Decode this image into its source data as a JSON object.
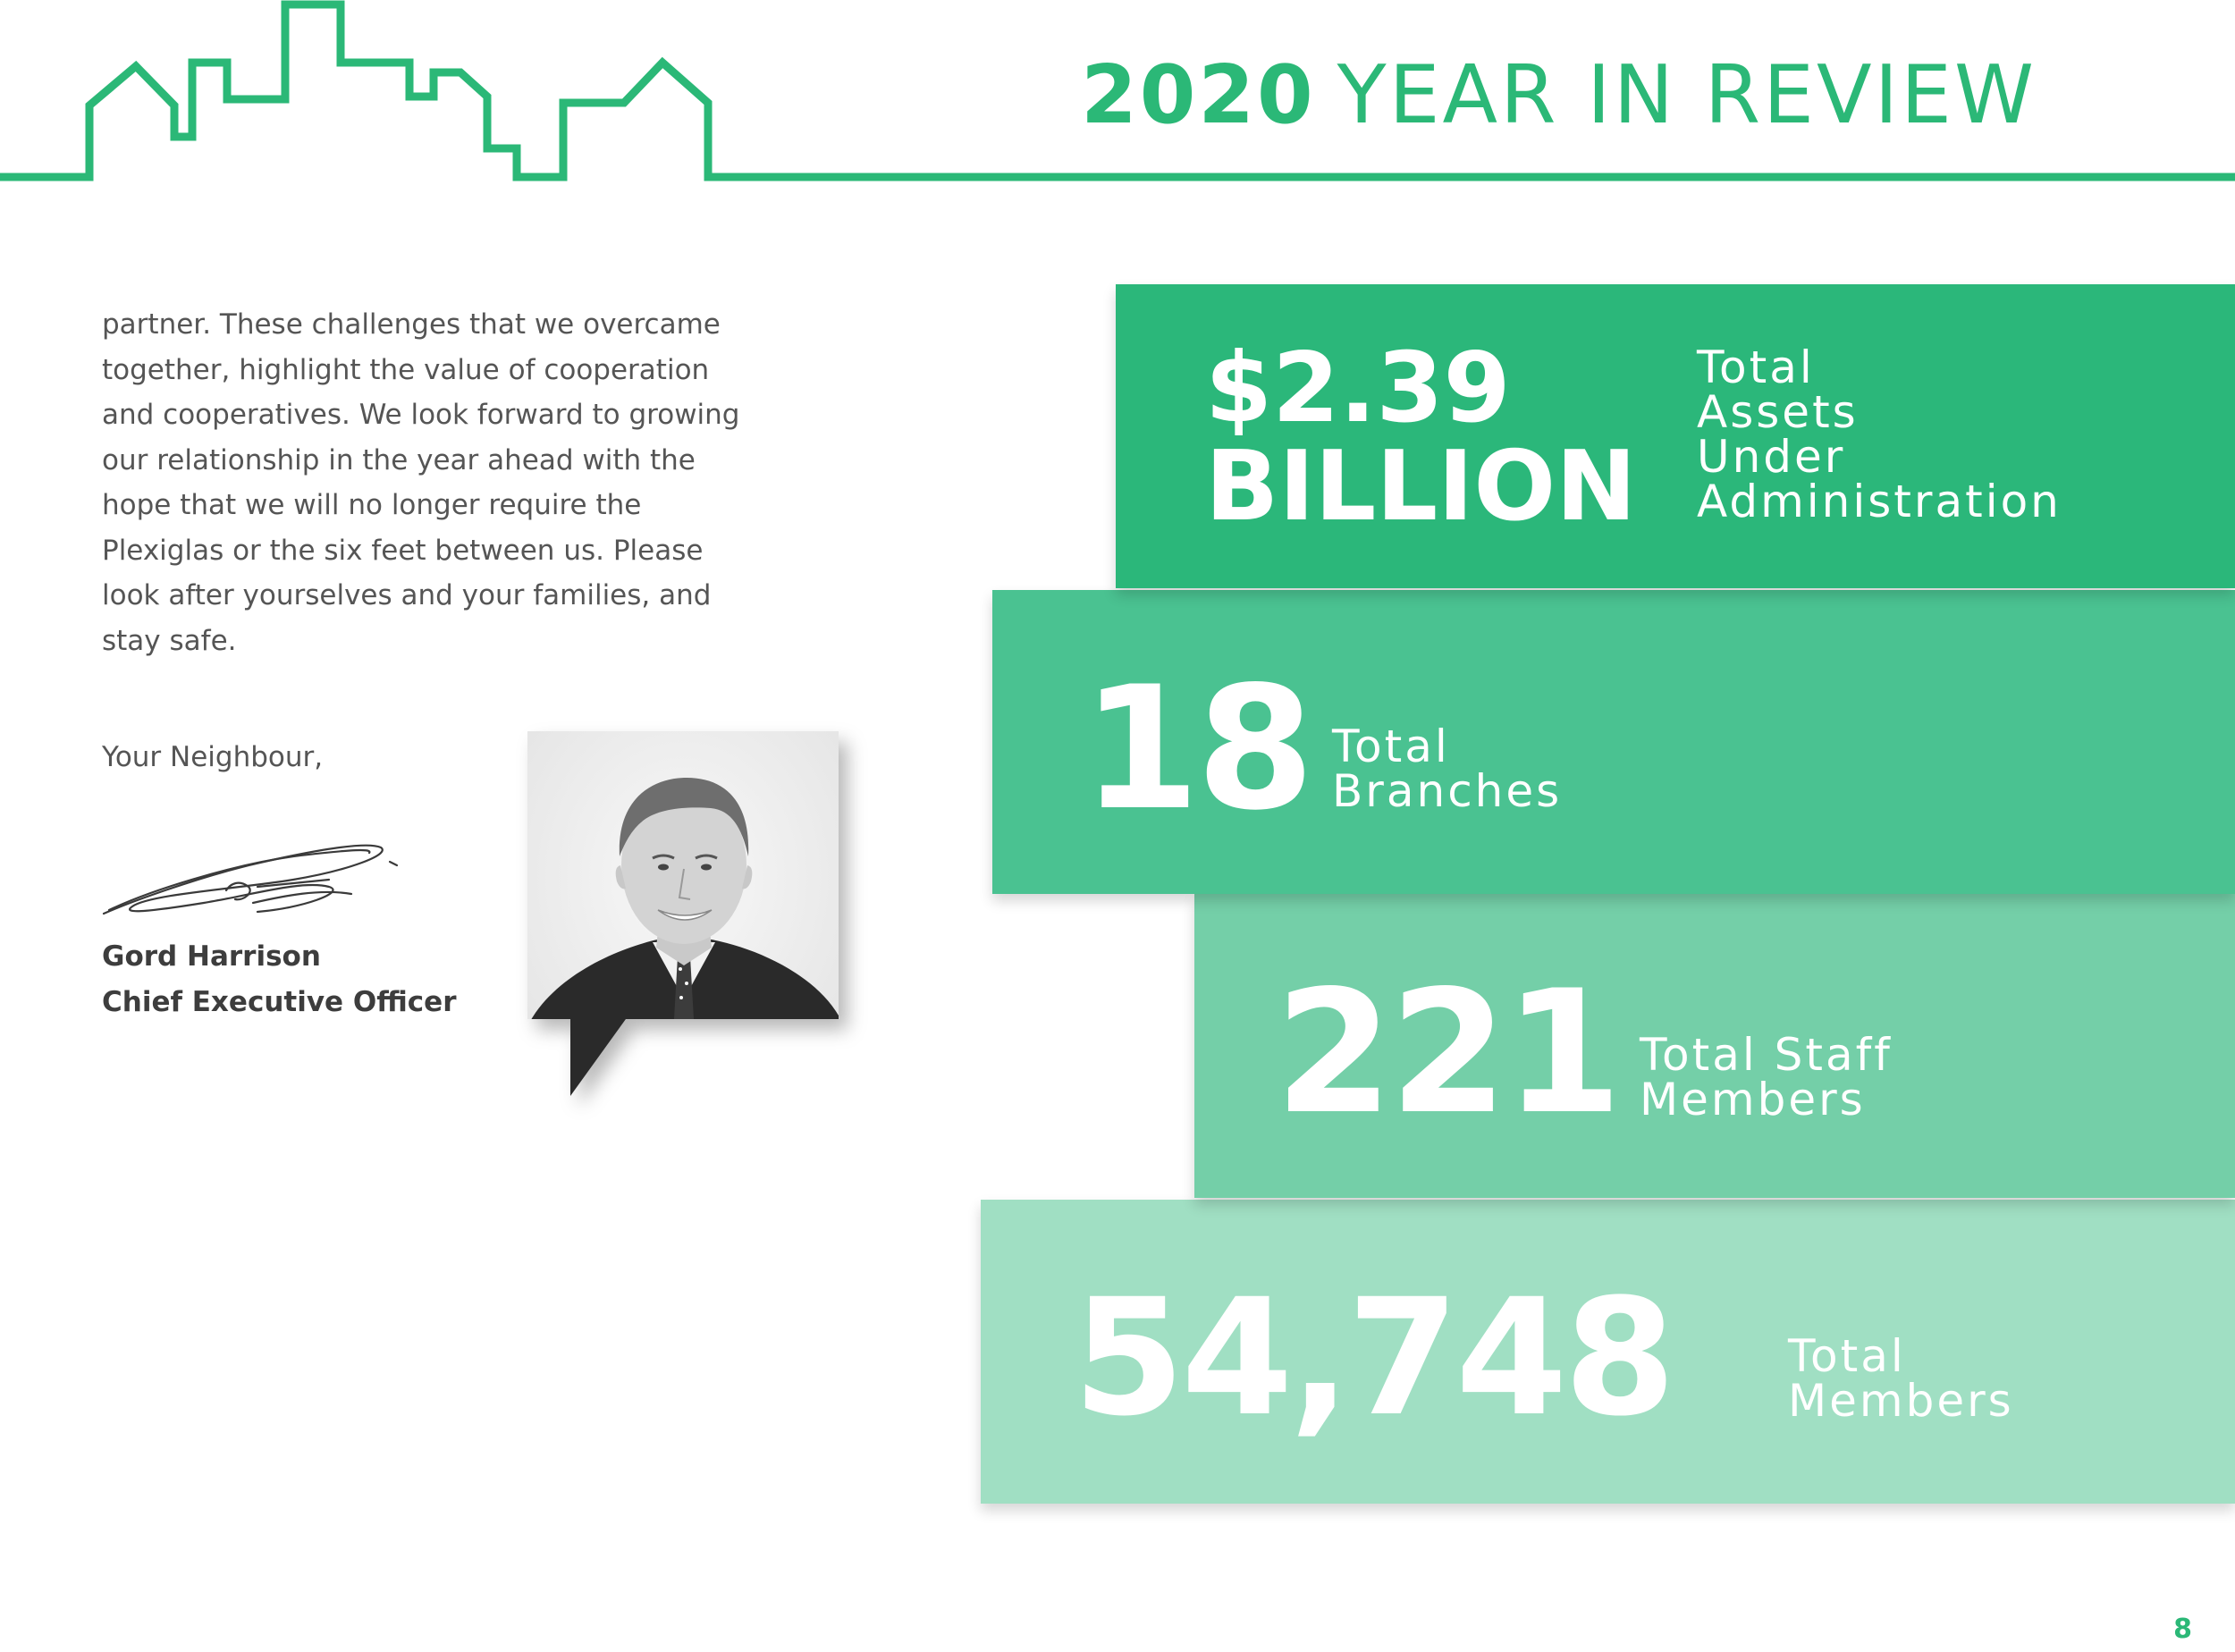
{
  "header": {
    "title_year": "2020",
    "title_rest": "YEAR IN REVIEW",
    "accent_color": "#2bb877",
    "skyline_icon": "city-skyline-outline"
  },
  "letter": {
    "lines": [
      "partner. These challenges that we overcame",
      "together, highlight the value of cooperation",
      "and cooperatives. We look forward to growing",
      "our relationship in the year ahead with the",
      "hope that we will no longer require the",
      "Plexiglas or the six feet between us. Please",
      "look after yourselves and your families, and",
      "stay safe."
    ],
    "closing": "Your Neighbour,",
    "signer_name": "Gord Harrison",
    "signer_title": "Chief Executive Officer",
    "portrait_icon": "person-portrait-speech-bubble"
  },
  "stats": [
    {
      "value_line1": "$2.39",
      "value_line2": "BILLION",
      "label": [
        "Total",
        "Assets",
        "Under",
        "Administration"
      ],
      "color": "#2bb77a"
    },
    {
      "value": "18",
      "label": [
        "Total",
        "Branches"
      ],
      "color": "#4ac291"
    },
    {
      "value": "221",
      "label": [
        "Total Staff",
        "Members"
      ],
      "color": "#74cfa8"
    },
    {
      "value": "54,748",
      "label": [
        "Total",
        "Members"
      ],
      "color": "#a0dfc3"
    }
  ],
  "page_number": "8"
}
